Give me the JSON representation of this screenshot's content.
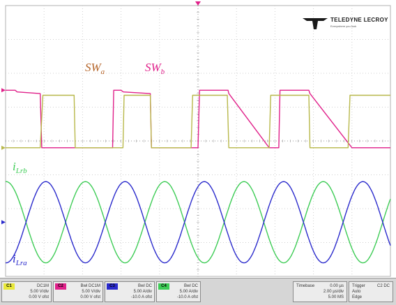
{
  "chart_data": {
    "type": "line",
    "title": "",
    "xlabel": "",
    "ylabel": "",
    "time_unit": "divisions",
    "x_divisions": 10,
    "y_divisions": 8,
    "grid": true,
    "series": [
      {
        "name": "SW_b",
        "color": "#e0208a",
        "trace": "switching",
        "x": [
          0.0,
          0.25,
          0.3,
          0.9,
          0.94,
          1.78,
          1.8,
          2.78,
          2.81,
          3.0,
          3.06,
          3.76,
          3.79,
          5.0,
          5.04,
          5.78,
          5.8,
          6.85,
          6.88,
          7.1,
          7.13,
          7.88,
          7.91,
          9.0,
          9.05,
          10.0
        ],
        "y": [
          1.5,
          1.5,
          1.45,
          1.4,
          -0.2,
          -0.2,
          -0.2,
          -0.2,
          1.5,
          1.5,
          1.45,
          1.4,
          -0.2,
          -0.2,
          1.5,
          1.5,
          1.4,
          -0.2,
          -0.2,
          -0.2,
          1.5,
          1.5,
          1.4,
          -0.2,
          -0.2,
          -0.2
        ]
      },
      {
        "name": "SW_a",
        "color": "#b8b84a",
        "trace": "switching",
        "x": [
          0.0,
          0.9,
          0.97,
          1.78,
          1.81,
          2.78,
          2.81,
          3.05,
          3.08,
          3.76,
          3.79,
          4.82,
          4.86,
          5.76,
          5.8,
          6.85,
          6.89,
          7.88,
          7.91,
          8.9,
          8.95,
          10.0
        ],
        "y": [
          -0.2,
          -0.2,
          1.35,
          1.35,
          -0.2,
          -0.2,
          -0.2,
          -0.2,
          1.35,
          1.35,
          -0.2,
          -0.2,
          1.35,
          1.35,
          -0.2,
          -0.2,
          1.35,
          1.35,
          -0.2,
          -0.2,
          1.35,
          1.35
        ]
      },
      {
        "name": "i_Lrb",
        "color": "#3dcc55",
        "trace": "current",
        "period_div": 2.06,
        "amplitude_div": 1.2,
        "offset_div": -2.4,
        "phase_div": -0.5
      },
      {
        "name": "i_Lra",
        "color": "#2a2acc",
        "trace": "current",
        "period_div": 2.06,
        "amplitude_div": 1.2,
        "offset_div": -2.4,
        "phase_div": 0.53
      }
    ],
    "annotations": [
      {
        "base": "SW",
        "sub": "a",
        "color": "#b5652a"
      },
      {
        "base": "SW",
        "sub": "b",
        "color": "#e0208a"
      },
      {
        "base": "i",
        "sub": "Lrb",
        "color": "#3dcc55"
      },
      {
        "base": "i",
        "sub": "Lra",
        "color": "#2a2acc"
      }
    ]
  },
  "brand": {
    "name": "TELEDYNE LECROY",
    "tagline": "Everywhere you look"
  },
  "channels": [
    {
      "id": "C1",
      "color": "#e8e83a",
      "lines": [
        "DC1M",
        "5.00 V/div",
        "0.00 V ofst"
      ]
    },
    {
      "id": "C2",
      "color": "#e0208a",
      "lines": [
        "Bwl DC1M",
        "5.00 V/div",
        "0.00 V ofst"
      ]
    },
    {
      "id": "C3",
      "color": "#2a2acc",
      "lines": [
        "Bwl DC",
        "5.00 A/div",
        "-10.0 A ofst"
      ]
    },
    {
      "id": "C4",
      "color": "#3dcc55",
      "lines": [
        "Bwl DC",
        "5.00 A/div",
        "-10.0 A ofst"
      ]
    }
  ],
  "timebase": {
    "label": "Timebase",
    "value": "0.00 µs",
    "lines": [
      "2.00 µs/div",
      "5.00 MS"
    ]
  },
  "trigger": {
    "label": "Trigger",
    "value": "C2 DC",
    "lines": [
      "Auto",
      "Edge"
    ]
  }
}
